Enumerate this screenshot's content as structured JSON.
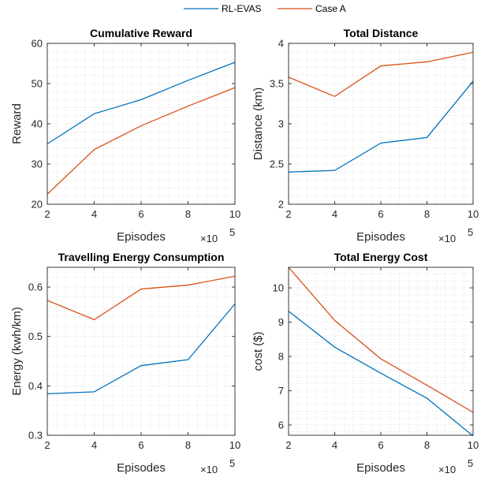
{
  "legend": {
    "entries": [
      {
        "label": "RL-EVAS",
        "color": "#0072BD"
      },
      {
        "label": "Case A",
        "color": "#D95319"
      }
    ]
  },
  "chart_data": [
    {
      "type": "line",
      "title": "Cumulative Reward",
      "xlabel": "Episodes",
      "ylabel": "Reward",
      "x_multiplier_label": "×10",
      "x_multiplier_exp": "5",
      "x": [
        2,
        4,
        6,
        8,
        10
      ],
      "xlim": [
        2,
        10
      ],
      "ylim": [
        20,
        60
      ],
      "xticks": [
        2,
        4,
        6,
        8,
        10
      ],
      "yticks": [
        20,
        30,
        40,
        50,
        60
      ],
      "grid": "minor-dotted",
      "series": [
        {
          "name": "RL-EVAS",
          "color": "#0072BD",
          "values": [
            35.0,
            42.5,
            46.0,
            50.8,
            55.3
          ]
        },
        {
          "name": "Case A",
          "color": "#D95319",
          "values": [
            22.5,
            33.6,
            39.5,
            44.4,
            49.0
          ]
        }
      ]
    },
    {
      "type": "line",
      "title": "Total Distance",
      "xlabel": "Episodes",
      "ylabel": "Distance (km)",
      "x_multiplier_label": "×10",
      "x_multiplier_exp": "5",
      "x": [
        2,
        4,
        6,
        8,
        10
      ],
      "xlim": [
        2,
        10
      ],
      "ylim": [
        2,
        4
      ],
      "xticks": [
        2,
        4,
        6,
        8,
        10
      ],
      "yticks": [
        2,
        2.5,
        3,
        3.5,
        4
      ],
      "grid": "minor-dotted",
      "series": [
        {
          "name": "RL-EVAS",
          "color": "#0072BD",
          "values": [
            2.4,
            2.42,
            2.76,
            2.83,
            3.53
          ]
        },
        {
          "name": "Case A",
          "color": "#D95319",
          "values": [
            3.58,
            3.34,
            3.72,
            3.77,
            3.89
          ]
        }
      ]
    },
    {
      "type": "line",
      "title": "Travelling Energy Consumption",
      "xlabel": "Episodes",
      "ylabel": "Energy (kwh/km)",
      "x_multiplier_label": "×10",
      "x_multiplier_exp": "5",
      "x": [
        2,
        4,
        6,
        8,
        10
      ],
      "xlim": [
        2,
        10
      ],
      "ylim": [
        0.3,
        0.64
      ],
      "xticks": [
        2,
        4,
        6,
        8,
        10
      ],
      "yticks": [
        0.3,
        0.4,
        0.5,
        0.6
      ],
      "grid": "minor-dotted",
      "series": [
        {
          "name": "RL-EVAS",
          "color": "#0072BD",
          "values": [
            0.384,
            0.388,
            0.441,
            0.453,
            0.566
          ]
        },
        {
          "name": "Case A",
          "color": "#D95319",
          "values": [
            0.573,
            0.534,
            0.596,
            0.604,
            0.622
          ]
        }
      ]
    },
    {
      "type": "line",
      "title": "Total Energy Cost",
      "xlabel": "Episodes",
      "ylabel": "cost ($)",
      "x_multiplier_label": "×10",
      "x_multiplier_exp": "5",
      "x": [
        2,
        4,
        6,
        8,
        10
      ],
      "xlim": [
        2,
        10
      ],
      "ylim": [
        5.7,
        10.6
      ],
      "xticks": [
        2,
        4,
        6,
        8,
        10
      ],
      "yticks": [
        6,
        7,
        8,
        9,
        10
      ],
      "grid": "minor-dotted",
      "series": [
        {
          "name": "RL-EVAS",
          "color": "#0072BD",
          "values": [
            9.32,
            8.27,
            7.51,
            6.78,
            5.68
          ]
        },
        {
          "name": "Case A",
          "color": "#D95319",
          "values": [
            10.6,
            9.05,
            7.93,
            7.16,
            6.37
          ]
        }
      ]
    }
  ]
}
